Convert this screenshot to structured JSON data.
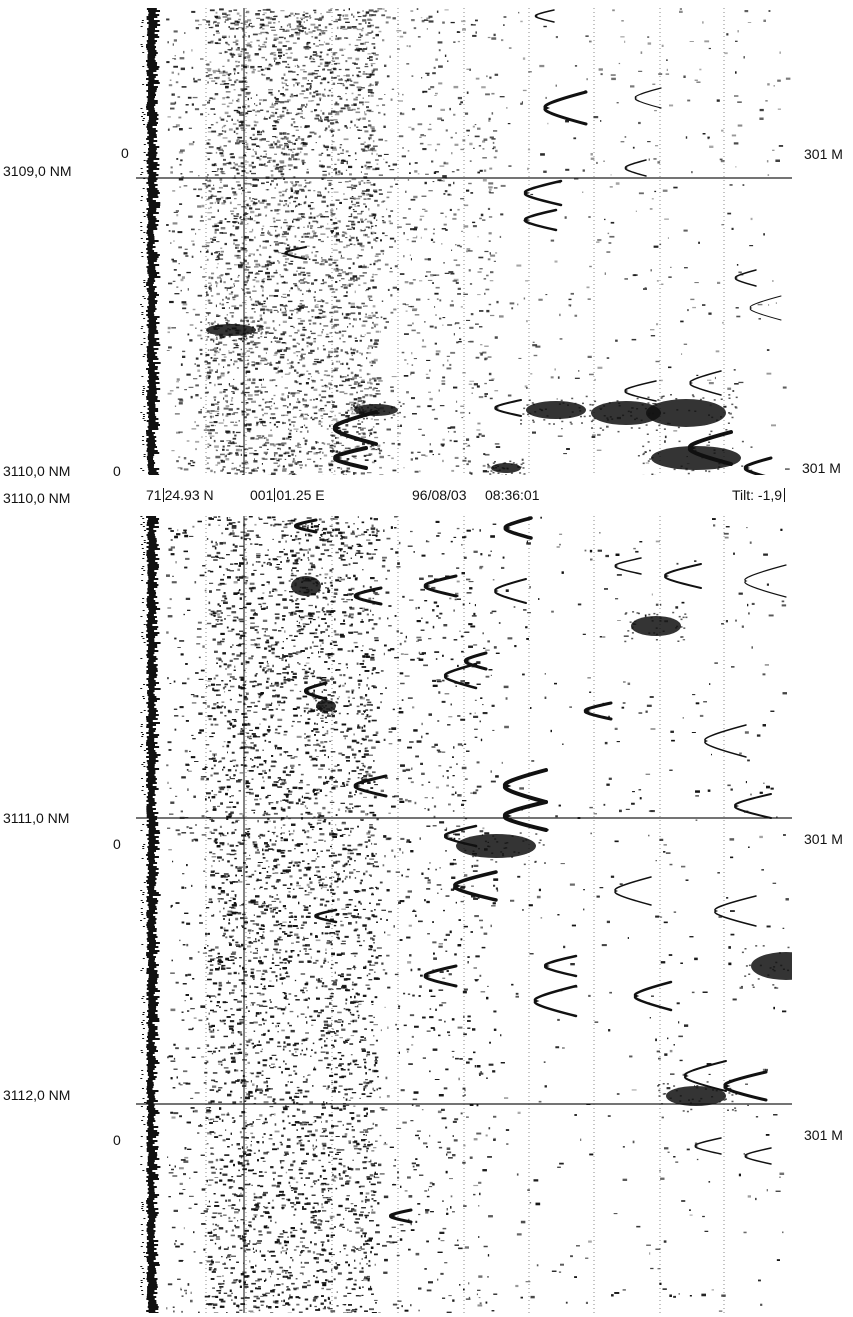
{
  "top_panel": {
    "left_labels": {
      "mark_1": "3109,0 NM",
      "mark_2": "3110,0 NM"
    },
    "zero_labels": [
      "0",
      "0"
    ],
    "right_labels": [
      "301 M",
      "301 M"
    ]
  },
  "header": {
    "lat_deg": "71",
    "lat_min": "24.93 N",
    "lon_deg": "001",
    "lon_min": "01.25 E",
    "date": "96/08/03",
    "time": "08:36:01",
    "tilt": "Tilt: -1,9"
  },
  "bottom_panel": {
    "left_labels": {
      "mark_0": "3110,0 NM",
      "mark_1": "3111,0 NM",
      "mark_2": "3112,0 NM"
    },
    "zero_labels": [
      "0",
      "0"
    ],
    "right_labels": [
      "301 M",
      "301 M"
    ]
  },
  "colors": {
    "ink": "#111111",
    "paper": "#ffffff",
    "grid": "#888888"
  }
}
